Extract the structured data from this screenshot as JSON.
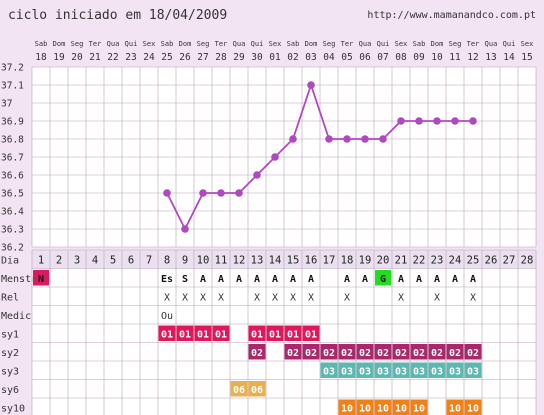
{
  "header": {
    "title": "ciclo iniciado em 18/04/2009",
    "url": "http://www.mamanandco.com.pt"
  },
  "chart_data": {
    "type": "line",
    "weekdays": [
      "Sab",
      "Dom",
      "Seg",
      "Ter",
      "Qua",
      "Qui",
      "Sex",
      "Sab",
      "Dom",
      "Seg",
      "Ter",
      "Qua",
      "Qui",
      "Sex",
      "Sab",
      "Dom",
      "Seg",
      "Ter",
      "Qua",
      "Qui",
      "Sex",
      "Sab",
      "Dom",
      "Seg",
      "Ter",
      "Qua",
      "Qui",
      "Sex"
    ],
    "dates": [
      "18",
      "19",
      "20",
      "21",
      "22",
      "23",
      "24",
      "25",
      "26",
      "27",
      "28",
      "29",
      "30",
      "01",
      "02",
      "03",
      "04",
      "05",
      "06",
      "07",
      "08",
      "09",
      "10",
      "11",
      "12",
      "13",
      "14",
      "15"
    ],
    "y_ticks": [
      "37.2",
      "37.1",
      "37",
      "36.9",
      "36.8",
      "36.7",
      "36.6",
      "36.5",
      "36.4",
      "36.3",
      "36.2"
    ],
    "ylim": [
      36.2,
      37.2
    ],
    "temperatures": [
      null,
      null,
      null,
      null,
      null,
      null,
      null,
      36.5,
      36.3,
      36.5,
      36.5,
      36.5,
      36.6,
      36.7,
      36.8,
      37.1,
      36.8,
      36.8,
      36.8,
      36.8,
      36.9,
      36.9,
      36.9,
      36.9,
      36.9,
      null,
      null,
      null
    ],
    "series_color": "#b048c0",
    "row_labels": [
      "Dia",
      "Menstr",
      "Rel",
      "Medic",
      "sy1",
      "sy2",
      "sy3",
      "sy6",
      "sy10"
    ],
    "days": [
      "1",
      "2",
      "3",
      "4",
      "5",
      "6",
      "7",
      "8",
      "9",
      "10",
      "11",
      "12",
      "13",
      "14",
      "15",
      "16",
      "17",
      "18",
      "19",
      "20",
      "21",
      "22",
      "23",
      "24",
      "25",
      "26",
      "27",
      "28"
    ],
    "menstr": [
      "N",
      "",
      "",
      "",
      "",
      "",
      "",
      "Es",
      "S",
      "A",
      "A",
      "A",
      "A",
      "A",
      "A",
      "A",
      "",
      "A",
      "A",
      "G",
      "A",
      "A",
      "A",
      "A",
      "A",
      "",
      "",
      ""
    ],
    "menstr_colors": {
      "N": "#d81b60",
      "G": "#22dd22"
    },
    "rel": [
      "",
      "",
      "",
      "",
      "",
      "",
      "",
      "X",
      "X",
      "X",
      "X",
      "",
      "X",
      "X",
      "X",
      "X",
      "",
      "X",
      "",
      "",
      "X",
      "",
      "X",
      "",
      "X",
      "",
      "",
      ""
    ],
    "medic": [
      "",
      "",
      "",
      "",
      "",
      "",
      "",
      "Ou",
      "",
      "",
      "",
      "",
      "",
      "",
      "",
      "",
      "",
      "",
      "",
      "",
      "",
      "",
      "",
      "",
      "",
      "",
      "",
      ""
    ],
    "sy1": [
      "",
      "",
      "",
      "",
      "",
      "",
      "",
      "01",
      "01",
      "01",
      "01",
      "",
      "01",
      "01",
      "01",
      "01",
      "",
      "",
      "",
      "",
      "",
      "",
      "",
      "",
      "",
      "",
      "",
      ""
    ],
    "sy2": [
      "",
      "",
      "",
      "",
      "",
      "",
      "",
      "",
      "",
      "",
      "",
      "",
      "02",
      "",
      "02",
      "02",
      "02",
      "02",
      "02",
      "02",
      "02",
      "02",
      "02",
      "02",
      "02",
      "",
      "",
      ""
    ],
    "sy3": [
      "",
      "",
      "",
      "",
      "",
      "",
      "",
      "",
      "",
      "",
      "",
      "",
      "",
      "",
      "",
      "",
      "03",
      "03",
      "03",
      "03",
      "03",
      "03",
      "03",
      "03",
      "03",
      "",
      "",
      ""
    ],
    "sy6": [
      "",
      "",
      "",
      "",
      "",
      "",
      "",
      "",
      "",
      "",
      "",
      "06",
      "06",
      "",
      "",
      "",
      "",
      "",
      "",
      "",
      "",
      "",
      "",
      "",
      "",
      "",
      "",
      ""
    ],
    "sy10": [
      "",
      "",
      "",
      "",
      "",
      "",
      "",
      "",
      "",
      "",
      "",
      "",
      "",
      "",
      "",
      "",
      "",
      "10",
      "10",
      "10",
      "10",
      "10",
      "",
      "10",
      "10",
      "",
      "",
      ""
    ],
    "sym_colors": {
      "sy1": "#e0185a",
      "sy2": "#a8286a",
      "sy3": "#5cb8b0",
      "sy6": "#e8b050",
      "sy10": "#f08018"
    }
  }
}
